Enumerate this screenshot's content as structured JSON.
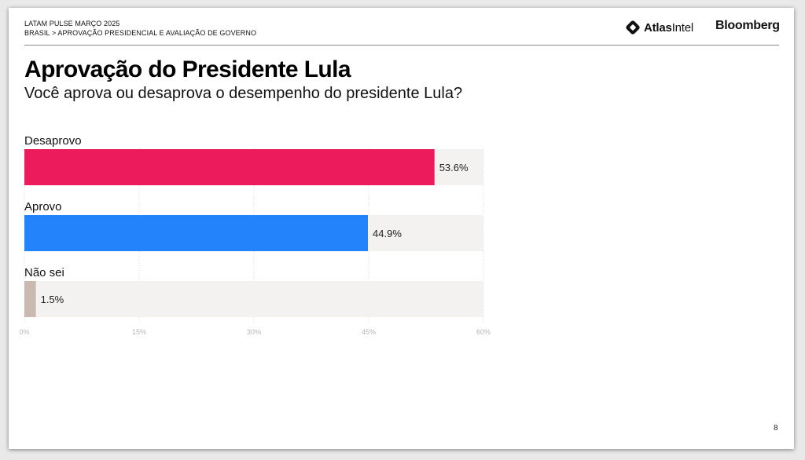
{
  "header": {
    "line1": "LATAM PULSE MARÇO 2025",
    "line2": "BRASIL > APROVAÇÃO PRESIDENCIAL E AVALIAÇÃO DE GOVERNO",
    "logo_atlas_bold": "Atlas",
    "logo_atlas_rest": "Intel",
    "logo_bloomberg": "Bloomberg"
  },
  "title": "Aprovação do Presidente Lula",
  "subtitle": "Você aprova ou desaprova o desempenho do presidente Lula?",
  "page_number": "8",
  "colors": {
    "desaprovo": "#ec1c5c",
    "aprovo": "#2283fb",
    "nao_sei": "#c9b9b1",
    "track": "#f3f2f1"
  },
  "chart_data": {
    "type": "bar",
    "orientation": "horizontal",
    "categories": [
      "Desaprovo",
      "Aprovo",
      "Não sei"
    ],
    "values": [
      53.6,
      44.9,
      1.5
    ],
    "value_labels": [
      "53.6%",
      "44.9%",
      "1.5%"
    ],
    "xlim": [
      0,
      60
    ],
    "xticks": [
      0,
      15,
      30,
      45,
      60
    ],
    "xtick_labels": [
      "0%",
      "15%",
      "30%",
      "45%",
      "60%"
    ],
    "grid": true
  }
}
